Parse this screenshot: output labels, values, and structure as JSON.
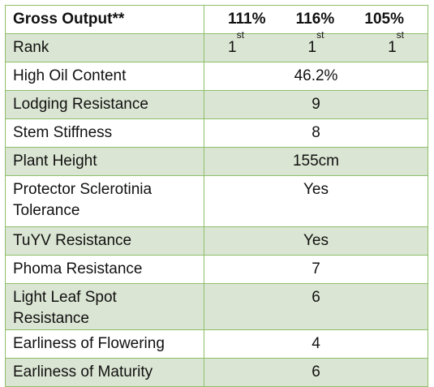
{
  "header": {
    "label": "Gross Output**",
    "values": [
      "111%",
      "116%",
      "105%"
    ]
  },
  "rank": {
    "label": "Rank",
    "values": [
      {
        "num": "1",
        "sup": "st"
      },
      {
        "num": "1",
        "sup": "st"
      },
      {
        "num": "1",
        "sup": "st"
      }
    ]
  },
  "rows": [
    {
      "label": "High Oil Content",
      "value": "46.2%"
    },
    {
      "label": "Lodging Resistance",
      "value": "9"
    },
    {
      "label": "Stem Stiffness",
      "value": "8"
    },
    {
      "label": "Plant Height",
      "value": "155cm"
    },
    {
      "label": "Protector Sclerotinia Tolerance",
      "value": "Yes"
    },
    {
      "label": "TuYV Resistance",
      "value": "Yes"
    },
    {
      "label": "Phoma Resistance",
      "value": "7"
    },
    {
      "label": "Light Leaf Spot Resistance",
      "value": "6"
    },
    {
      "label": "Earliness of Flowering",
      "value": "4"
    },
    {
      "label": "Earliness of Maturity",
      "value": "6"
    }
  ],
  "colors": {
    "border": "#8dbf6a",
    "band": "#dbe5d3",
    "plain": "#ffffff"
  }
}
